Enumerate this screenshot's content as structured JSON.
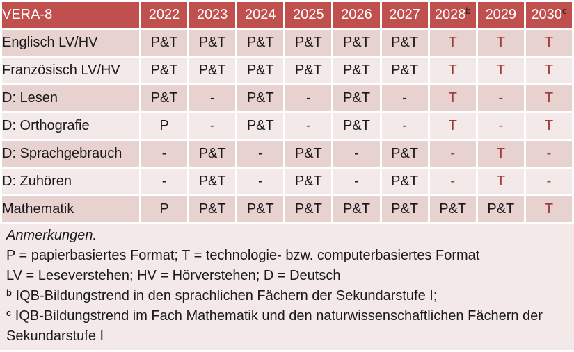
{
  "colors": {
    "header_bg": "#C0504D",
    "header_text": "#FFFFFF",
    "row_dark": "#E8D2D0",
    "row_light": "#F3E9E8",
    "value_text": "#1A1A1A",
    "value_red": "#9E3B38",
    "footnote_marker_in_header": "#1A1A1A",
    "gap": "#FFFFFF"
  },
  "table": {
    "title": "VERA-8",
    "years": [
      {
        "label": "2022",
        "sup": ""
      },
      {
        "label": "2023",
        "sup": ""
      },
      {
        "label": "2024",
        "sup": ""
      },
      {
        "label": "2025",
        "sup": ""
      },
      {
        "label": "2026",
        "sup": ""
      },
      {
        "label": "2027",
        "sup": ""
      },
      {
        "label": "2028",
        "sup": "b"
      },
      {
        "label": "2029",
        "sup": ""
      },
      {
        "label": "2030",
        "sup": "c"
      }
    ],
    "rows": [
      {
        "label": "Englisch LV/HV",
        "values": [
          "P&T",
          "P&T",
          "P&T",
          "P&T",
          "P&T",
          "P&T",
          "T",
          "T",
          "T"
        ],
        "red": [
          false,
          false,
          false,
          false,
          false,
          false,
          true,
          true,
          true
        ]
      },
      {
        "label": "Französisch LV/HV",
        "values": [
          "P&T",
          "P&T",
          "P&T",
          "P&T",
          "P&T",
          "P&T",
          "T",
          "T",
          "T"
        ],
        "red": [
          false,
          false,
          false,
          false,
          false,
          false,
          true,
          true,
          true
        ]
      },
      {
        "label": "D: Lesen",
        "values": [
          "P&T",
          "-",
          "P&T",
          "-",
          "P&T",
          "-",
          "T",
          "-",
          "T"
        ],
        "red": [
          false,
          false,
          false,
          false,
          false,
          false,
          true,
          true,
          true
        ]
      },
      {
        "label": "D: Orthografie",
        "values": [
          "P",
          "-",
          "P&T",
          "-",
          "P&T",
          "-",
          "T",
          "-",
          "T"
        ],
        "red": [
          false,
          false,
          false,
          false,
          false,
          false,
          true,
          true,
          true
        ]
      },
      {
        "label": "D: Sprachgebrauch",
        "values": [
          "-",
          "P&T",
          "-",
          "P&T",
          "-",
          "P&T",
          "-",
          "T",
          "-"
        ],
        "red": [
          false,
          false,
          false,
          false,
          false,
          false,
          true,
          true,
          true
        ]
      },
      {
        "label": "D: Zuhören",
        "values": [
          "-",
          "P&T",
          "-",
          "P&T",
          "-",
          "P&T",
          "-",
          "T",
          "-"
        ],
        "red": [
          false,
          false,
          false,
          false,
          false,
          false,
          true,
          true,
          true
        ]
      },
      {
        "label": "Mathematik",
        "values": [
          "P",
          "P&T",
          "P&T",
          "P&T",
          "P&T",
          "P&T",
          "P&T",
          "P&T",
          "T"
        ],
        "red": [
          false,
          false,
          false,
          false,
          false,
          false,
          false,
          false,
          true
        ]
      }
    ]
  },
  "notes": {
    "heading": "Anmerkungen.",
    "line_formats": "P = papierbasiertes Format; T = technologie- bzw. computerbasiertes Format",
    "line_abbrev": "LV = Leseverstehen; HV = Hörverstehen; D = Deutsch",
    "note_b": {
      "marker": "b",
      "text": " IQB-Bildungstrend in den sprachlichen Fächern der Sekundarstufe I;"
    },
    "note_c": {
      "marker": "c",
      "text": " IQB-Bildungstrend im Fach Mathematik und den naturwissenschaftlichen Fächern der Sekundarstufe I"
    }
  }
}
